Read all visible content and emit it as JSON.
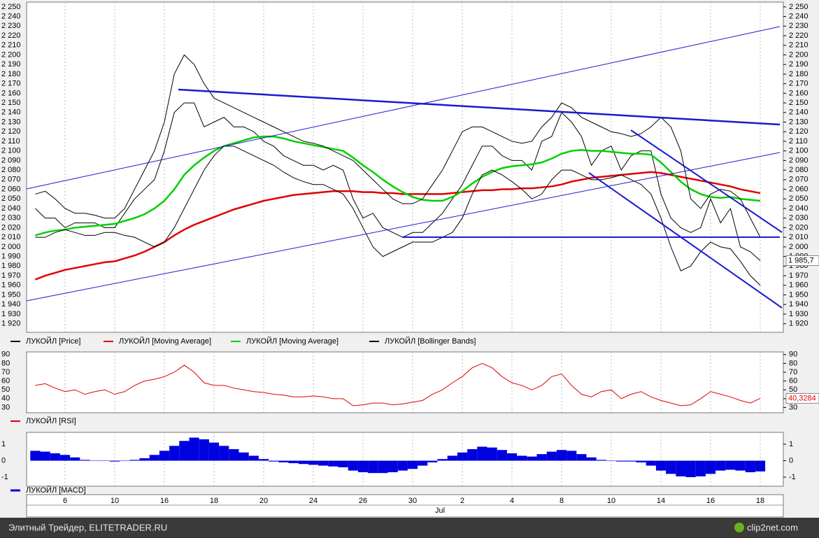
{
  "chart_data": [
    {
      "type": "line",
      "categories": [
        null,
        null,
        null,
        "6",
        null,
        null,
        null,
        null,
        "10",
        null,
        null,
        null,
        null,
        "16",
        null,
        null,
        null,
        null,
        "18",
        null,
        null,
        null,
        null,
        "20",
        null,
        null,
        null,
        null,
        "24",
        null,
        null,
        null,
        null,
        "26",
        null,
        null,
        null,
        null,
        "30",
        null,
        null,
        null,
        null,
        "2",
        null,
        null,
        null,
        null,
        "4",
        null,
        null,
        null,
        null,
        "8",
        null,
        null,
        null,
        null,
        "10",
        null,
        null,
        null,
        null,
        "14",
        null,
        null,
        null,
        null,
        "16",
        null,
        null,
        null,
        null,
        "18"
      ],
      "month_label": "Jul",
      "ylim": [
        1911,
        2255
      ],
      "yticks": [
        {
          "value": 2250,
          "label": "2 250"
        },
        {
          "value": 2240,
          "label": "2 240"
        },
        {
          "value": 2230,
          "label": "2 230"
        },
        {
          "value": 2220,
          "label": "2 220"
        },
        {
          "value": 2210,
          "label": "2 210"
        },
        {
          "value": 2200,
          "label": "2 200"
        },
        {
          "value": 2190,
          "label": "2 190"
        },
        {
          "value": 2180,
          "label": "2 180"
        },
        {
          "value": 2170,
          "label": "2 170"
        },
        {
          "value": 2160,
          "label": "2 160"
        },
        {
          "value": 2150,
          "label": "2 150"
        },
        {
          "value": 2140,
          "label": "2 140"
        },
        {
          "value": 2130,
          "label": "2 130"
        },
        {
          "value": 2120,
          "label": "2 120"
        },
        {
          "value": 2110,
          "label": "2 110"
        },
        {
          "value": 2100,
          "label": "2 100"
        },
        {
          "value": 2090,
          "label": "2 090"
        },
        {
          "value": 2080,
          "label": "2 080"
        },
        {
          "value": 2070,
          "label": "2 070"
        },
        {
          "value": 2060,
          "label": "2 060"
        },
        {
          "value": 2050,
          "label": "2 050"
        },
        {
          "value": 2040,
          "label": "2 040"
        },
        {
          "value": 2030,
          "label": "2 030"
        },
        {
          "value": 2020,
          "label": "2 020"
        },
        {
          "value": 2010,
          "label": "2 010"
        },
        {
          "value": 2000,
          "label": "2 000"
        },
        {
          "value": 1990,
          "label": "1 990"
        },
        {
          "value": 1980,
          "label": "1 980"
        },
        {
          "value": 1970,
          "label": "1 970"
        },
        {
          "value": 1960,
          "label": "1 960"
        },
        {
          "value": 1950,
          "label": "1 950"
        },
        {
          "value": 1940,
          "label": "1 940"
        },
        {
          "value": 1930,
          "label": "1 930"
        },
        {
          "value": 1920,
          "label": "1 920"
        }
      ],
      "series": [
        {
          "name": "ЛУКОЙЛ [Price]",
          "color": "#000000",
          "values": [
            2040,
            2030,
            2030,
            2020,
            2025,
            2025,
            2025,
            2020,
            2020,
            2035,
            2050,
            2060,
            2070,
            2100,
            2140,
            2150,
            2150,
            2125,
            2130,
            2135,
            2125,
            2125,
            2120,
            2110,
            2105,
            2095,
            2090,
            2085,
            2085,
            2080,
            2085,
            2080,
            2050,
            2030,
            2035,
            2020,
            2015,
            2010,
            2015,
            2015,
            2025,
            2035,
            2050,
            2065,
            2085,
            2105,
            2105,
            2095,
            2090,
            2090,
            2080,
            2110,
            2115,
            2140,
            2130,
            2115,
            2085,
            2100,
            2105,
            2080,
            2095,
            2100,
            2100,
            2055,
            2030,
            2020,
            2015,
            2020,
            2050,
            2025,
            2040,
            2000,
            1995,
            1985.7
          ],
          "value_labels": [
            null,
            null,
            null,
            null,
            null,
            null,
            null,
            null,
            null,
            null,
            null,
            null,
            null,
            null,
            null,
            null,
            null,
            null,
            null,
            null,
            null,
            null,
            null,
            null,
            null,
            null,
            null,
            null,
            null,
            null,
            null,
            null,
            null,
            null,
            null,
            null,
            null,
            null,
            null,
            null,
            null,
            null,
            null,
            null,
            null,
            null,
            null,
            null,
            null,
            null,
            null,
            null,
            null,
            null,
            null,
            null,
            null,
            null,
            null,
            null,
            null,
            null,
            null,
            null,
            null,
            null,
            null,
            null,
            null,
            null,
            null,
            null,
            null,
            "1 985,7"
          ]
        },
        {
          "name": "ЛУКОЙЛ [Moving Average]",
          "color": "#e00000",
          "values": [
            1966,
            1970,
            1973,
            1976,
            1978,
            1980,
            1982,
            1984,
            1985,
            1988,
            1991,
            1995,
            2000,
            2005,
            2012,
            2018,
            2023,
            2027,
            2031,
            2035,
            2039,
            2042,
            2045,
            2048,
            2050,
            2052,
            2054,
            2055,
            2056,
            2057,
            2058,
            2058,
            2058,
            2057,
            2057,
            2056,
            2056,
            2055,
            2055,
            2055,
            2055,
            2055,
            2056,
            2057,
            2058,
            2059,
            2059,
            2060,
            2060,
            2061,
            2061,
            2062,
            2063,
            2065,
            2068,
            2070,
            2072,
            2073,
            2074,
            2075,
            2076,
            2077,
            2078,
            2077,
            2075,
            2073,
            2071,
            2069,
            2067,
            2065,
            2063,
            2060,
            2058,
            2056
          ]
        },
        {
          "name": "ЛУКОЙЛ [Moving Average]",
          "color": "#00d000",
          "values": [
            2012,
            2015,
            2017,
            2018,
            2020,
            2021,
            2022,
            2023,
            2024,
            2027,
            2030,
            2034,
            2040,
            2048,
            2060,
            2075,
            2085,
            2093,
            2100,
            2105,
            2108,
            2111,
            2114,
            2115,
            2115,
            2113,
            2110,
            2108,
            2106,
            2104,
            2102,
            2100,
            2093,
            2085,
            2078,
            2070,
            2063,
            2057,
            2052,
            2049,
            2048,
            2048,
            2052,
            2058,
            2066,
            2073,
            2078,
            2082,
            2084,
            2085,
            2086,
            2088,
            2092,
            2097,
            2100,
            2101,
            2100,
            2100,
            2099,
            2098,
            2097,
            2097,
            2096,
            2088,
            2078,
            2068,
            2060,
            2055,
            2052,
            2051,
            2052,
            2050,
            2049,
            2048
          ]
        },
        {
          "name": "ЛУКОЙЛ [Bollinger Bands]",
          "color": "#000000",
          "values": [
            2055,
            2058,
            2050,
            2040,
            2035,
            2035,
            2033,
            2030,
            2030,
            2040,
            2060,
            2080,
            2100,
            2130,
            2180,
            2200,
            2190,
            2170,
            2155,
            2150,
            2145,
            2140,
            2135,
            2130,
            2125,
            2120,
            2115,
            2110,
            2108,
            2105,
            2100,
            2095,
            2090,
            2080,
            2070,
            2060,
            2050,
            2045,
            2045,
            2050,
            2065,
            2080,
            2100,
            2120,
            2125,
            2125,
            2120,
            2115,
            2110,
            2108,
            2110,
            2125,
            2135,
            2150,
            2145,
            2135,
            2130,
            2125,
            2120,
            2118,
            2115,
            2118,
            2125,
            2135,
            2125,
            2100,
            2050,
            2040,
            2055,
            2060,
            2058,
            2050,
            2030,
            2010
          ],
          "values_lower": [
            2010,
            2010,
            2015,
            2018,
            2015,
            2012,
            2012,
            2015,
            2015,
            2012,
            2010,
            2005,
            2000,
            2005,
            2020,
            2040,
            2060,
            2080,
            2095,
            2105,
            2105,
            2100,
            2095,
            2090,
            2085,
            2078,
            2072,
            2068,
            2065,
            2065,
            2060,
            2055,
            2040,
            2020,
            2000,
            1990,
            1995,
            2000,
            2005,
            2005,
            2005,
            2010,
            2015,
            2030,
            2055,
            2075,
            2080,
            2075,
            2068,
            2060,
            2050,
            2055,
            2070,
            2080,
            2080,
            2075,
            2070,
            2070,
            2072,
            2075,
            2070,
            2065,
            2055,
            2030,
            2000,
            1975,
            1980,
            1995,
            2005,
            2000,
            1998,
            1985,
            1970,
            1960
          ]
        }
      ]
    },
    {
      "type": "line",
      "ylim": [
        24,
        93
      ],
      "yticks": [
        90,
        80,
        70,
        60,
        50,
        40,
        30
      ],
      "series": [
        {
          "name": "ЛУКОЙЛ [RSI]",
          "color": "#e00000",
          "values": [
            55,
            57,
            52,
            48,
            50,
            45,
            48,
            50,
            45,
            48,
            55,
            60,
            62,
            65,
            70,
            78,
            70,
            58,
            55,
            55,
            52,
            50,
            48,
            47,
            45,
            44,
            42,
            42,
            43,
            42,
            40,
            40,
            32,
            33,
            35,
            35,
            33,
            34,
            36,
            38,
            45,
            50,
            58,
            65,
            75,
            80,
            75,
            65,
            58,
            55,
            50,
            55,
            65,
            68,
            55,
            45,
            42,
            48,
            50,
            40,
            45,
            48,
            42,
            38,
            35,
            32,
            33,
            40,
            48,
            45,
            42,
            38,
            35,
            40.3284
          ],
          "value_labels": [
            null,
            null,
            null,
            null,
            null,
            null,
            null,
            null,
            null,
            null,
            null,
            null,
            null,
            null,
            null,
            null,
            null,
            null,
            null,
            null,
            null,
            null,
            null,
            null,
            null,
            null,
            null,
            null,
            null,
            null,
            null,
            null,
            null,
            null,
            null,
            null,
            null,
            null,
            null,
            null,
            null,
            null,
            null,
            null,
            null,
            null,
            null,
            null,
            null,
            null,
            null,
            null,
            null,
            null,
            null,
            null,
            null,
            null,
            null,
            null,
            null,
            null,
            null,
            null,
            null,
            null,
            null,
            null,
            null,
            null,
            null,
            null,
            null,
            "40,3284"
          ]
        }
      ]
    },
    {
      "type": "bar",
      "ylim": [
        -1.55,
        1.72
      ],
      "yticks": [
        1,
        0,
        -1
      ],
      "series": [
        {
          "name": "ЛУКОЙЛ [MACD]",
          "color": "#0000e0",
          "values": [
            0.6,
            0.55,
            0.45,
            0.35,
            0.2,
            0.05,
            0,
            0,
            -0.05,
            0,
            0.05,
            0.15,
            0.35,
            0.6,
            0.9,
            1.2,
            1.4,
            1.3,
            1.1,
            0.9,
            0.7,
            0.5,
            0.3,
            0.1,
            -0.05,
            -0.1,
            -0.15,
            -0.2,
            -0.25,
            -0.3,
            -0.35,
            -0.4,
            -0.6,
            -0.7,
            -0.75,
            -0.75,
            -0.7,
            -0.6,
            -0.5,
            -0.3,
            -0.1,
            0.1,
            0.3,
            0.5,
            0.7,
            0.85,
            0.8,
            0.65,
            0.45,
            0.3,
            0.25,
            0.4,
            0.55,
            0.65,
            0.6,
            0.4,
            0.2,
            0.05,
            0,
            -0.05,
            -0.05,
            -0.1,
            -0.3,
            -0.6,
            -0.8,
            -0.95,
            -1.0,
            -0.95,
            -0.8,
            -0.6,
            -0.55,
            -0.6,
            -0.7,
            -0.65
          ]
        }
      ]
    }
  ],
  "footer": {
    "left": "Элитный Трейдер, ELITETRADER.RU",
    "right": "clip2net.com"
  }
}
